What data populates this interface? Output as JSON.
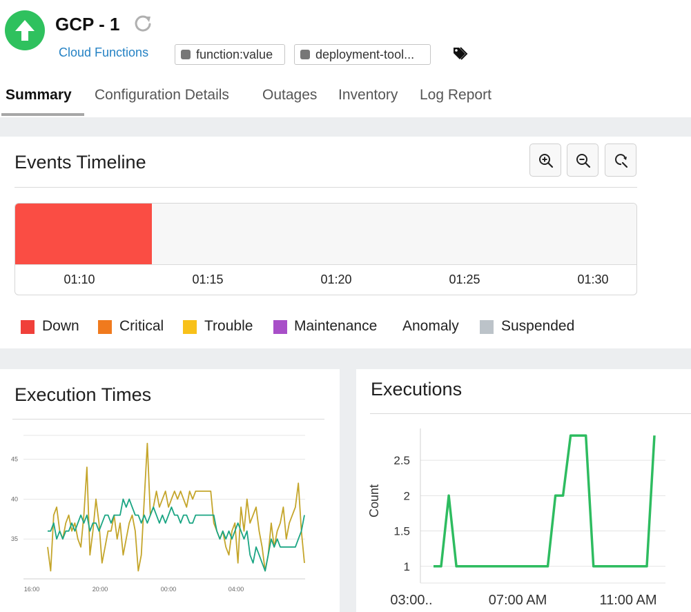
{
  "header": {
    "monitor_name": "GCP - 1",
    "monitor_type": "Cloud Functions",
    "status_icon": "up-arrow-icon",
    "status_color": "#2fc15e",
    "tags": [
      "function:value",
      "deployment-tool..."
    ]
  },
  "tabs": [
    "Summary",
    "Configuration Details",
    "Outages",
    "Inventory",
    "Log Report"
  ],
  "active_tab": "Summary",
  "events_timeline": {
    "title": "Events Timeline",
    "ticks": [
      "01:10",
      "01:15",
      "01:20",
      "01:25",
      "01:30"
    ],
    "legend": [
      {
        "label": "Down",
        "color": "#f0403a"
      },
      {
        "label": "Critical",
        "color": "#f07a1e"
      },
      {
        "label": "Trouble",
        "color": "#f8c11a"
      },
      {
        "label": "Maintenance",
        "color": "#a84fc8"
      },
      {
        "label": "Anomaly",
        "color": ""
      },
      {
        "label": "Suspended",
        "color": "#bcc3c9"
      }
    ],
    "down_fraction": 0.22
  },
  "execution_times": {
    "title": "Execution Times"
  },
  "executions": {
    "title": "Executions"
  },
  "chart_data": [
    {
      "type": "line",
      "title": "Execution Times",
      "x_ticks": [
        "16:00",
        "20:00",
        "00:00",
        "04:00"
      ],
      "y_ticks": [
        35,
        40,
        45
      ],
      "ylim": [
        30,
        48
      ],
      "grid": true,
      "series": [
        {
          "color": "#c4a52a",
          "values": [
            34,
            31,
            38,
            39,
            36,
            35,
            37,
            38,
            36,
            37,
            35,
            34,
            38,
            44,
            33,
            36,
            40,
            37,
            32,
            34,
            36,
            36,
            38,
            35,
            37,
            33,
            35,
            37,
            38,
            36,
            31,
            33,
            40,
            47,
            38,
            39,
            41,
            39,
            40,
            41,
            39,
            40,
            41,
            40,
            41,
            40,
            39,
            41,
            40,
            41,
            41,
            41,
            41,
            41,
            41,
            37,
            36,
            35,
            36,
            34,
            33,
            36,
            37,
            32,
            39,
            36,
            40,
            37,
            38,
            39,
            36,
            34,
            31,
            33,
            37,
            34,
            36,
            37,
            39,
            35,
            37,
            38,
            39,
            42,
            36,
            32
          ]
        },
        {
          "color": "#1aa583",
          "values": [
            36,
            36,
            37,
            35,
            36,
            35,
            36,
            36,
            37,
            36,
            37,
            38,
            37,
            38,
            36,
            37,
            37,
            36,
            37,
            38,
            38,
            37,
            38,
            38,
            38,
            40,
            39,
            40,
            39,
            38,
            38,
            37,
            38,
            37,
            38,
            39,
            38,
            37,
            38,
            37,
            38,
            39,
            38,
            38,
            37,
            38,
            38,
            37,
            37,
            38,
            38,
            38,
            38,
            38,
            38,
            38,
            36,
            35,
            36,
            35,
            36,
            35,
            36,
            37,
            36,
            35,
            36,
            33,
            32,
            34,
            33,
            32,
            31,
            33,
            35,
            34,
            35,
            34,
            34,
            34,
            34,
            34,
            34,
            35,
            36,
            38
          ]
        }
      ]
    },
    {
      "type": "line",
      "title": "Executions",
      "ylabel": "Count",
      "x_ticks": [
        "03:00..",
        "07:00 AM",
        "11:00 AM"
      ],
      "y_ticks": [
        1,
        1.5,
        2,
        2.5
      ],
      "ylim": [
        0.9,
        2.95
      ],
      "grid": true,
      "series": [
        {
          "color": "#2ebc60",
          "values": [
            1,
            1,
            2,
            1,
            1,
            1,
            1,
            1,
            1,
            1,
            1,
            1,
            1,
            1,
            1,
            1,
            2,
            2,
            2.85,
            2.85,
            2.85,
            1,
            1,
            1,
            1,
            1,
            1,
            1,
            1,
            2.85
          ]
        }
      ]
    }
  ]
}
